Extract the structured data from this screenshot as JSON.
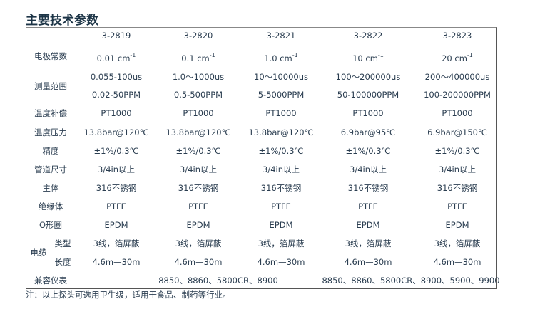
{
  "title": "主要技术参数",
  "models": [
    "3-2819",
    "3-2820",
    "3-2821",
    "3-2822",
    "3-2823"
  ],
  "rows": {
    "electrode_constant": {
      "label": "电极常数",
      "values": [
        "0.01 cm",
        "0.1 cm",
        "1.0 cm",
        "10 cm",
        "20 cm"
      ],
      "exponent": "-1"
    },
    "range": {
      "label": "测量范围",
      "us": [
        "0.055-100us",
        "1.0～1000us",
        "10～10000us",
        "100～200000us",
        "200～400000us"
      ],
      "ppm": [
        "0.02-50PPM",
        "0.5-500PPM",
        "5-5000PPM",
        "50-100000PPM",
        "100-200000PPM"
      ]
    },
    "temp_comp": {
      "label": "温度补偿",
      "values": [
        "PT1000",
        "PT1000",
        "PT1000",
        "PT1000",
        "PT1000"
      ]
    },
    "temp_pressure": {
      "label": "温度压力",
      "values": [
        "13.8bar@120℃",
        "13.8bar@120℃",
        "13.8bar@120℃",
        "6.9bar@95℃",
        "6.9bar@150℃"
      ]
    },
    "accuracy": {
      "label": "精度",
      "values": [
        "±1%/0.3℃",
        "±1%/0.3℃",
        "±1%/0.3℃",
        "±1%/0.3℃",
        "±1%/0.3℃"
      ]
    },
    "pipe": {
      "label": "管道尺寸",
      "values": [
        "3/4in以上",
        "3/4in以上",
        "3/4in以上",
        "3/4in以上",
        "3/4in以上"
      ]
    },
    "body": {
      "label": "主体",
      "values": [
        "316不锈钢",
        "316不锈钢",
        "316不锈钢",
        "316不锈钢",
        "316不锈钢"
      ]
    },
    "insulator": {
      "label": "绝缘体",
      "values": [
        "PTFE",
        "PTFE",
        "PTFE",
        "PTFE",
        "PTFE"
      ]
    },
    "oring": {
      "label": "O形圈",
      "values": [
        "EPDM",
        "EPDM",
        "EPDM",
        "EPDM",
        "EPDM"
      ]
    },
    "cable": {
      "label": "电缆",
      "type_label": "类型",
      "type": [
        "3线，箔屏蔽",
        "3线，箔屏蔽",
        "3线，箔屏蔽",
        "3线，箔屏蔽",
        "3线，箔屏蔽"
      ],
      "length_label": "长度",
      "length": [
        "4.6m—30m",
        "4.6m—30m",
        "4.6m—30m",
        "4.6m—30m",
        "4.6m—30m"
      ]
    },
    "compat": {
      "label": "兼容仪表",
      "group1": "8850、8860、5800CR、8900",
      "group2": "8850、8860、5800CR、8900、5900、9900"
    }
  },
  "note": "注：以上探头可选用卫生级，适用于食品、制药等行业。"
}
